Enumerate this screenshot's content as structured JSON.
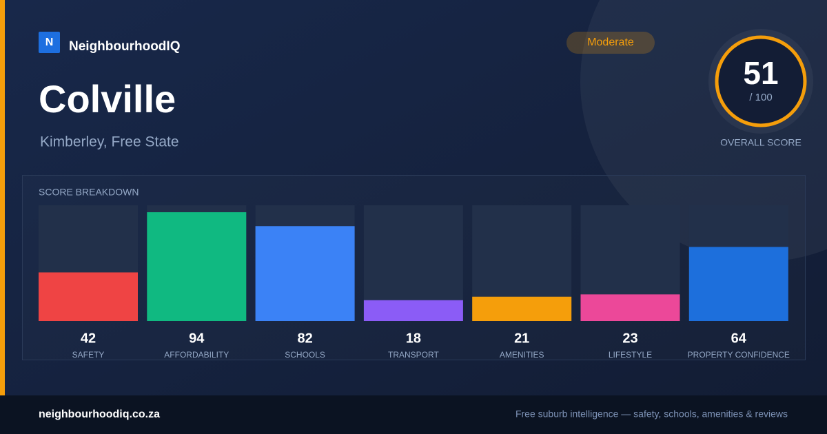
{
  "brand": {
    "logo": "N",
    "name": "NeighbourhoodIQ"
  },
  "badge": "Moderate",
  "title": "Colville",
  "subtitle": "Kimberley, Free State",
  "score": {
    "value": 51,
    "max_label": "/ 100",
    "label": "OVERALL SCORE"
  },
  "chart_data": {
    "type": "bar",
    "title": "SCORE BREAKDOWN",
    "categories": [
      "SAFETY",
      "AFFORDABILITY",
      "SCHOOLS",
      "TRANSPORT",
      "AMENITIES",
      "LIFESTYLE",
      "PROPERTY CONFIDENCE"
    ],
    "values": [
      42,
      94,
      82,
      18,
      21,
      23,
      64
    ],
    "colors": [
      "#ef4444",
      "#10b981",
      "#3b82f6",
      "#8b5cf6",
      "#f59e0b",
      "#ec4899",
      "#1d6fdc"
    ],
    "ylim": [
      0,
      100
    ]
  },
  "footer": {
    "site": "neighbourhoodiq.co.za",
    "tagline": "Free suburb intelligence — safety, schools, amenities & reviews"
  }
}
